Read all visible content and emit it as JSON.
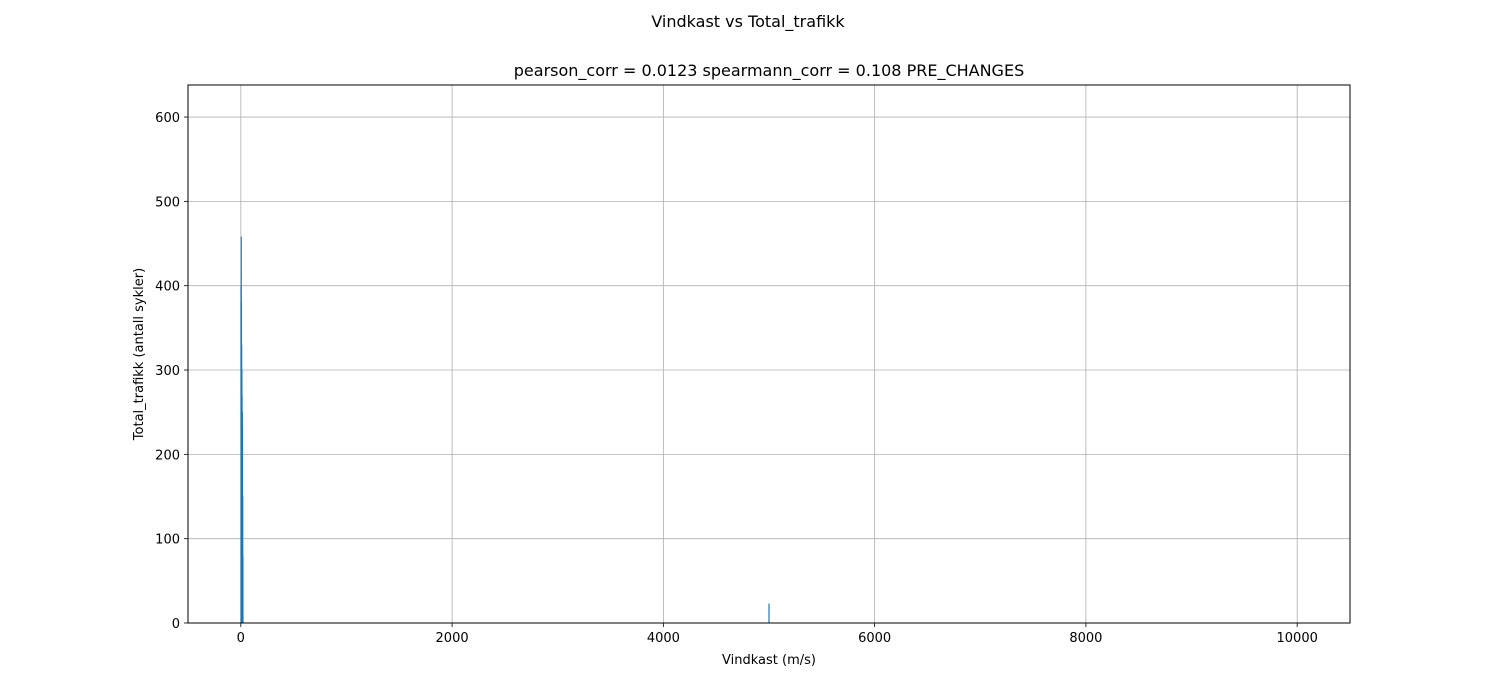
{
  "chart_data": {
    "type": "bar",
    "suptitle": "Vindkast vs Total_trafikk",
    "title": "pearson_corr = 0.0123 spearmann_corr = 0.108 PRE_CHANGES",
    "xlabel": "Vindkast (m/s)",
    "ylabel": "Total_trafikk (antall sykler)",
    "xlim": [
      -500,
      10500
    ],
    "ylim": [
      0,
      638
    ],
    "xticks": [
      0,
      2000,
      4000,
      6000,
      8000,
      10000
    ],
    "yticks": [
      0,
      100,
      200,
      300,
      400,
      500,
      600
    ],
    "grid": true,
    "bar_color": "#1f77b4",
    "bars": [
      {
        "x": 2,
        "y": 400
      },
      {
        "x": 4,
        "y": 458
      },
      {
        "x": 6,
        "y": 380
      },
      {
        "x": 8,
        "y": 330
      },
      {
        "x": 10,
        "y": 300
      },
      {
        "x": 12,
        "y": 270
      },
      {
        "x": 14,
        "y": 250
      },
      {
        "x": 16,
        "y": 234
      },
      {
        "x": 18,
        "y": 150
      },
      {
        "x": 20,
        "y": 80
      },
      {
        "x": 5000,
        "y": 23
      }
    ]
  }
}
